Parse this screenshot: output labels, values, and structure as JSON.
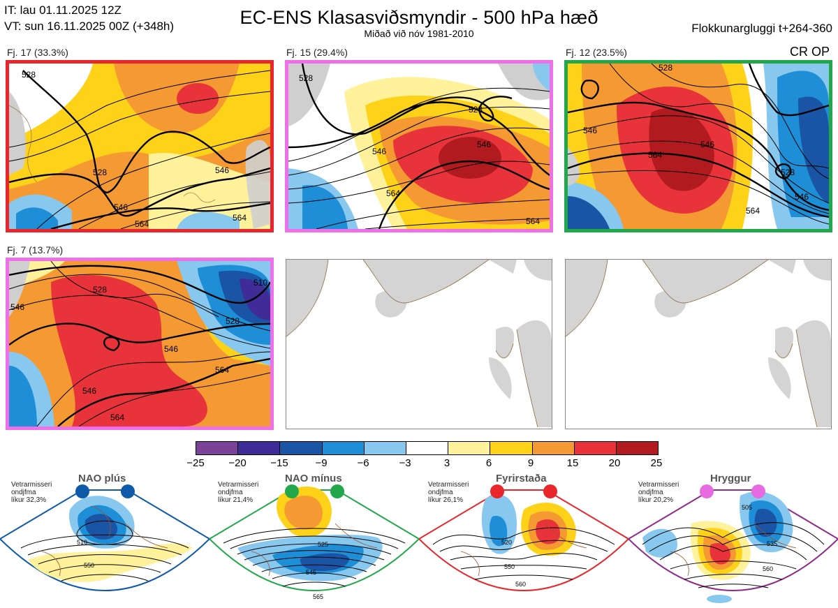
{
  "header": {
    "it_line": "IT: lau 01.11.2025 12Z",
    "vt_line": "VT: sun 16.11.2025 00Z  (+348h)",
    "title": "EC-ENS Klasasviðsmyndir - 500 hPa hæð",
    "subtitle": "Miðað við nóv 1981-2010",
    "window": "Flokkunargluggi t+264-360",
    "cr_op": "CR OP"
  },
  "panels": [
    {
      "label": "Fj. 17 (33.3%)",
      "border_color": "#e8262b",
      "contours": [
        "528",
        "528",
        "546",
        "546",
        "564",
        "564"
      ]
    },
    {
      "label": "Fj. 15 (29.4%)",
      "border_color": "#ee6fe8",
      "contours": [
        "528",
        "528",
        "546",
        "546",
        "564",
        "564"
      ]
    },
    {
      "label": "Fj. 12 (23.5%)",
      "border_color": "#22a84a",
      "contours": [
        "528",
        "546",
        "546",
        "546",
        "564",
        "564",
        "528"
      ]
    },
    {
      "label": "Fj. 7 (13.7%)",
      "border_color": "#ee6fe8",
      "contours": [
        "546",
        "528",
        "510",
        "528",
        "546",
        "546",
        "564",
        "564"
      ]
    },
    {
      "label": "",
      "border_color": "#888888",
      "contours": []
    },
    {
      "label": "",
      "border_color": "#888888",
      "contours": []
    }
  ],
  "colorbar": {
    "ticks": [
      "−25",
      "−20",
      "−15",
      "−9",
      "−6",
      "−3",
      "3",
      "6",
      "9",
      "15",
      "20",
      "25"
    ],
    "colors": [
      "#7b4397",
      "#3f2c96",
      "#1a55a5",
      "#1e8fd6",
      "#88c8ef",
      "#ffffff",
      "#fff29a",
      "#ffd21a",
      "#f59a32",
      "#e8333a",
      "#b11b20"
    ]
  },
  "regimes": [
    {
      "name": "NAO plús",
      "note": "Vetrarmisseri\nondjfma\nlíkur 32,3%",
      "color": "#0f5aa8",
      "contours": [
        "510",
        "550"
      ]
    },
    {
      "name": "NAO mínus",
      "note": "Vetrarmisseri\nondjfma\nlíkur 21,4%",
      "color": "#22a84a",
      "contours": [
        "525",
        "545",
        "565"
      ]
    },
    {
      "name": "Fyrirstaða",
      "note": "Vetrarmisseri\nondjfma\nlíkur 26,1%",
      "color": "#e8262b",
      "contours": [
        "520",
        "550",
        "560"
      ]
    },
    {
      "name": "Hryggur",
      "note": "Vetrarmisseri\nondjfma\nlíkur 20,2%",
      "color": "#e66be0",
      "contours": [
        "505",
        "535",
        "560"
      ]
    }
  ]
}
